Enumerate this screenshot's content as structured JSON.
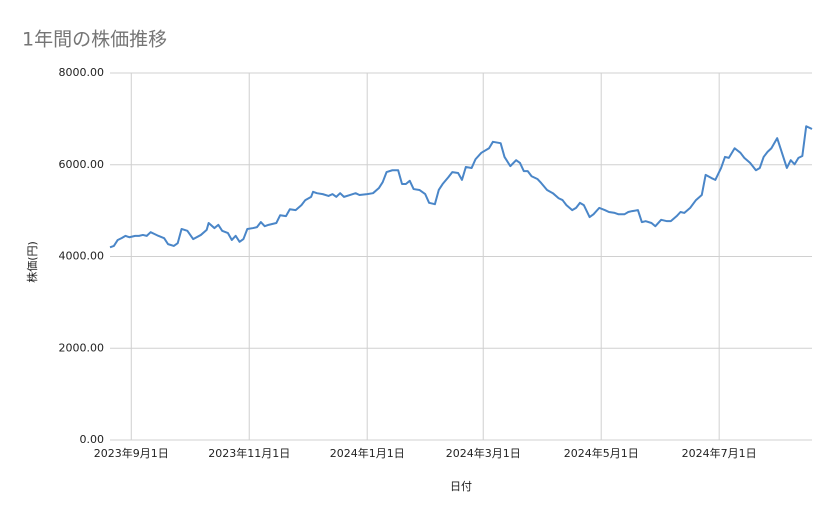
{
  "chart_data": {
    "type": "line",
    "title": "1年間の株価推移",
    "xlabel": "日付",
    "ylabel": "株価(円)",
    "color": "#4a86c8",
    "grid": true,
    "x": [
      "2023-08-21",
      "2023-08-23",
      "2023-08-25",
      "2023-08-27",
      "2023-08-29",
      "2023-08-31",
      "2023-09-03",
      "2023-09-05",
      "2023-09-07",
      "2023-09-09",
      "2023-09-11",
      "2023-09-13",
      "2023-09-15",
      "2023-09-18",
      "2023-09-20",
      "2023-09-23",
      "2023-09-25",
      "2023-09-27",
      "2023-09-30",
      "2023-10-03",
      "2023-10-07",
      "2023-10-10",
      "2023-10-11",
      "2023-10-14",
      "2023-10-16",
      "2023-10-18",
      "2023-10-21",
      "2023-10-23",
      "2023-10-25",
      "2023-10-27",
      "2023-10-29",
      "2023-10-31",
      "2023-11-03",
      "2023-11-05",
      "2023-11-07",
      "2023-11-09",
      "2023-11-11",
      "2023-11-15",
      "2023-11-17",
      "2023-11-20",
      "2023-11-22",
      "2023-11-25",
      "2023-11-28",
      "2023-11-30",
      "2023-12-03",
      "2023-12-04",
      "2023-12-06",
      "2023-12-09",
      "2023-12-12",
      "2023-12-14",
      "2023-12-16",
      "2023-12-18",
      "2023-12-20",
      "2023-12-23",
      "2023-12-26",
      "2023-12-28",
      "2024-01-01",
      "2024-01-04",
      "2024-01-07",
      "2024-01-09",
      "2024-01-11",
      "2024-01-14",
      "2024-01-17",
      "2024-01-19",
      "2024-01-21",
      "2024-01-23",
      "2024-01-25",
      "2024-01-28",
      "2024-01-31",
      "2024-02-02",
      "2024-02-05",
      "2024-02-07",
      "2024-02-09",
      "2024-02-12",
      "2024-02-14",
      "2024-02-17",
      "2024-02-19",
      "2024-02-21",
      "2024-02-24",
      "2024-02-26",
      "2024-02-29",
      "2024-03-04",
      "2024-03-06",
      "2024-03-10",
      "2024-03-12",
      "2024-03-15",
      "2024-03-18",
      "2024-03-20",
      "2024-03-22",
      "2024-03-24",
      "2024-03-26",
      "2024-03-29",
      "2024-03-31",
      "2024-04-03",
      "2024-04-06",
      "2024-04-09",
      "2024-04-11",
      "2024-04-13",
      "2024-04-16",
      "2024-04-18",
      "2024-04-20",
      "2024-04-22",
      "2024-04-25",
      "2024-04-27",
      "2024-04-30",
      "2024-05-03",
      "2024-05-05",
      "2024-05-08",
      "2024-05-10",
      "2024-05-13",
      "2024-05-15",
      "2024-05-17",
      "2024-05-20",
      "2024-05-22",
      "2024-05-24",
      "2024-05-27",
      "2024-05-29",
      "2024-06-01",
      "2024-06-04",
      "2024-06-06",
      "2024-06-09",
      "2024-06-11",
      "2024-06-13",
      "2024-06-16",
      "2024-06-19",
      "2024-06-22",
      "2024-06-24",
      "2024-06-27",
      "2024-06-29",
      "2024-07-02",
      "2024-07-04",
      "2024-07-06",
      "2024-07-09",
      "2024-07-12",
      "2024-07-14",
      "2024-07-17",
      "2024-07-20",
      "2024-07-22",
      "2024-07-24",
      "2024-07-26",
      "2024-07-28",
      "2024-07-31",
      "2024-08-02",
      "2024-08-05",
      "2024-08-07",
      "2024-08-09",
      "2024-08-11",
      "2024-08-13",
      "2024-08-15",
      "2024-08-18"
    ],
    "values": [
      4200,
      4230,
      4360,
      4400,
      4450,
      4420,
      4450,
      4450,
      4470,
      4450,
      4530,
      4490,
      4450,
      4400,
      4270,
      4230,
      4290,
      4600,
      4560,
      4380,
      4470,
      4580,
      4730,
      4620,
      4690,
      4560,
      4510,
      4360,
      4450,
      4320,
      4380,
      4600,
      4620,
      4640,
      4750,
      4660,
      4690,
      4730,
      4900,
      4880,
      5030,
      5010,
      5120,
      5230,
      5300,
      5410,
      5380,
      5360,
      5320,
      5360,
      5300,
      5380,
      5300,
      5340,
      5380,
      5340,
      5360,
      5380,
      5490,
      5620,
      5840,
      5880,
      5880,
      5580,
      5580,
      5650,
      5470,
      5450,
      5360,
      5170,
      5140,
      5450,
      5580,
      5730,
      5840,
      5820,
      5670,
      5950,
      5930,
      6120,
      6260,
      6360,
      6500,
      6470,
      6170,
      5970,
      6100,
      6040,
      5860,
      5860,
      5750,
      5690,
      5600,
      5450,
      5380,
      5270,
      5230,
      5120,
      5010,
      5060,
      5170,
      5120,
      4860,
      4920,
      5060,
      5010,
      4970,
      4950,
      4920,
      4920,
      4970,
      4990,
      5010,
      4750,
      4770,
      4730,
      4660,
      4800,
      4770,
      4770,
      4880,
      4970,
      4950,
      5060,
      5230,
      5340,
      5780,
      5710,
      5670,
      5930,
      6170,
      6150,
      6360,
      6260,
      6150,
      6040,
      5880,
      5930,
      6170,
      6280,
      6360,
      6580,
      6320,
      5930,
      6100,
      6010,
      6150,
      6190,
      6840,
      6780
    ],
    "xlim": [
      "2023-08-21",
      "2024-08-18"
    ],
    "xticks": [
      {
        "value": "2023-09-01",
        "label": "2023年9月1日"
      },
      {
        "value": "2023-11-01",
        "label": "2023年11月1日"
      },
      {
        "value": "2024-01-01",
        "label": "2024年1月1日"
      },
      {
        "value": "2024-03-01",
        "label": "2024年3月1日"
      },
      {
        "value": "2024-05-01",
        "label": "2024年5月1日"
      },
      {
        "value": "2024-07-01",
        "label": "2024年7月1日"
      }
    ],
    "ylim": [
      0,
      8000
    ],
    "yticks": [
      {
        "value": 0,
        "label": "0.00"
      },
      {
        "value": 2000,
        "label": "2000.00"
      },
      {
        "value": 4000,
        "label": "4000.00"
      },
      {
        "value": 6000,
        "label": "6000.00"
      },
      {
        "value": 8000,
        "label": "8000.00"
      }
    ]
  }
}
